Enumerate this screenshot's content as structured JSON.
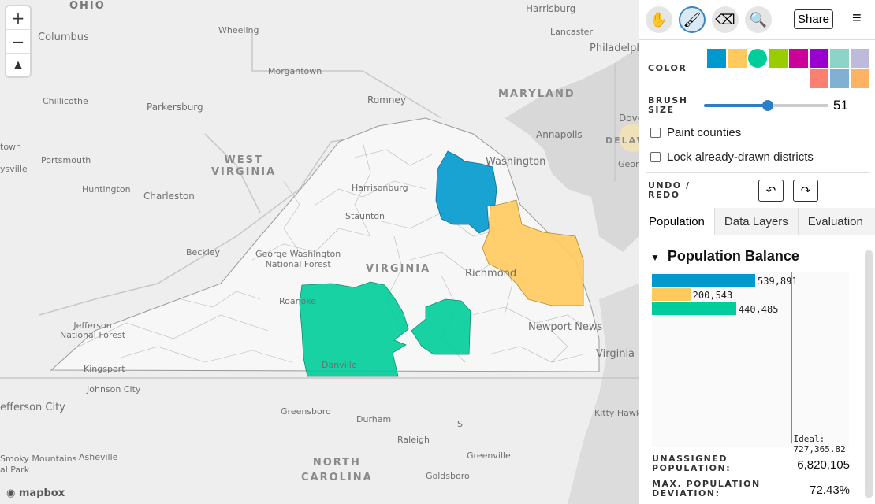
{
  "map": {
    "labels": {
      "ohio": "OHIO",
      "columbus": "Columbus",
      "wheeling": "Wheeling",
      "harrisburg": "Harrisburg",
      "lancaster": "Lancaster",
      "philadelphia": "Philadelphia",
      "morgantown": "Morgantown",
      "chillicothe": "Chillicothe",
      "parkersburg": "Parkersburg",
      "romney": "Romney",
      "maryland": "MARYLAND",
      "dover": "Dove",
      "town": "town",
      "portsmouth": "Portsmouth",
      "west_virginia": "WEST\nVIRGINIA",
      "washington": "Washington",
      "annapolis": "Annapolis",
      "delaware": "DELAW",
      "georgetown": "Georg",
      "ysville": "ysville",
      "huntington": "Huntington",
      "charleston": "Charleston",
      "harrisonburg": "Harrisonburg",
      "staunton": "Staunton",
      "beckley": "Beckley",
      "gwnf": "George Washington\nNational Forest",
      "virginia": "VIRGINIA",
      "richmond": "Richmond",
      "roanoke": "Roanoke",
      "jefferson": "Jefferson\nNational Forest",
      "newport": "Newport News",
      "kingsport": "Kingsport",
      "danville": "Danville",
      "vabeach": "Virginia B",
      "johnson": "Johnson City",
      "jefferson_city": "efferson City",
      "greensboro": "Greensboro",
      "durham": "Durham",
      "kitty": "Kitty Hawk",
      "raleigh": "Raleigh",
      "smoky": "Smoky Mountains\nal Park",
      "asheville": "Asheville",
      "north_carolina": "NORTH\nCAROLINA",
      "greenville": "Greenville",
      "goldsboro": "Goldsboro",
      "salisbury": "S",
      "mapbox": "mapbox"
    },
    "zoom_in": "+",
    "zoom_out": "−",
    "compass": "▲"
  },
  "toolbar": {
    "share_label": "Share",
    "menu_icon": "≡"
  },
  "color_label": "COLOR",
  "colors": [
    "#0099cd",
    "#ffca5d",
    "#00cd99",
    "#99cd00",
    "#cd0099",
    "#9900cd",
    "#8dd3c7",
    "#bebada",
    "#fb8072",
    "#80b1d3",
    "#fdb462"
  ],
  "brush": {
    "label": "BRUSH\nSIZE",
    "value": "51",
    "fraction": 0.51
  },
  "checkboxes": {
    "paint_counties": "Paint counties",
    "lock_districts": "Lock already-drawn districts"
  },
  "undo_redo_label": "UNDO /\nREDO",
  "tabs": [
    "Population",
    "Data Layers",
    "Evaluation"
  ],
  "population": {
    "heading": "Population Balance",
    "bars": [
      {
        "value": 539891,
        "label": "539,891",
        "color": "#0099cd"
      },
      {
        "value": 200543,
        "label": "200,543",
        "color": "#ffca5d"
      },
      {
        "value": 440485,
        "label": "440,485",
        "color": "#00cd99"
      }
    ],
    "ideal_value": 727365.82,
    "ideal_label": "Ideal: 727,365.82",
    "unassigned_label": "UNASSIGNED\nPOPULATION:",
    "unassigned_value": "6,820,105",
    "deviation_label": "MAX. POPULATION\nDEVIATION:",
    "deviation_value": "72.43%"
  }
}
